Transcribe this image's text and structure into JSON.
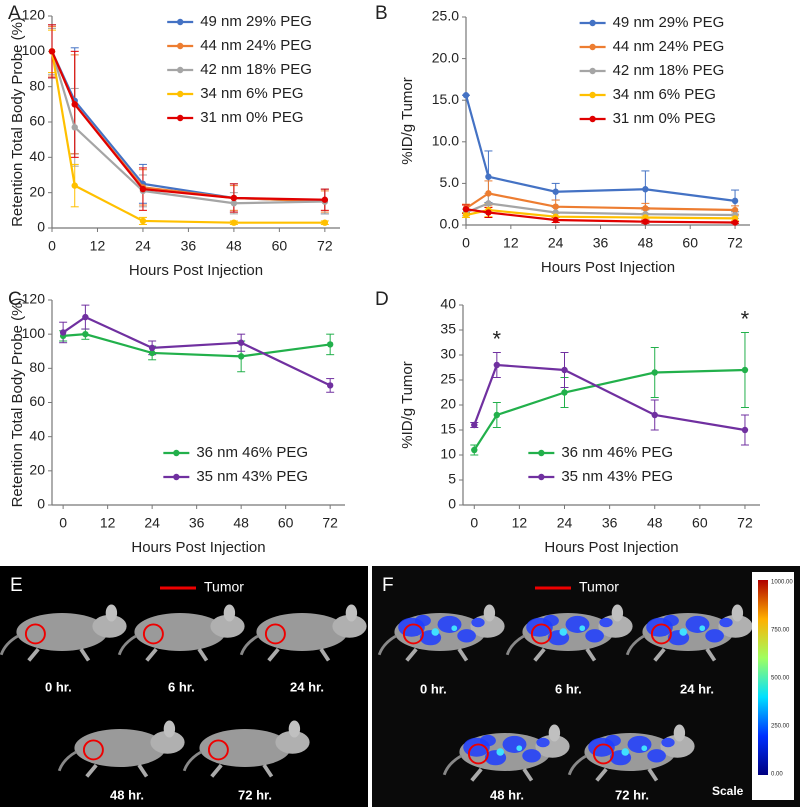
{
  "chart_data": [
    {
      "type": "line",
      "panel_label": "A",
      "x_label": "Hours Post Injection",
      "y_label": "Retention Total Body Probe (%)",
      "x": [
        0,
        6,
        24,
        48,
        72
      ],
      "xlim": [
        0,
        76
      ],
      "xticks": [
        0,
        12,
        24,
        36,
        48,
        60,
        72
      ],
      "ylim": [
        0,
        120
      ],
      "yticks": [
        0,
        20,
        40,
        60,
        80,
        100,
        120
      ],
      "grid": false,
      "legend": "upper right",
      "series": [
        {
          "name": "49 nm 29% PEG",
          "color": "#4472c4",
          "values": [
            100,
            72,
            25,
            17,
            15
          ],
          "errors": [
            15,
            30,
            11,
            8,
            7
          ]
        },
        {
          "name": "44 nm 24% PEG",
          "color": "#ed7d31",
          "values": [
            100,
            70,
            23,
            17,
            15
          ],
          "errors": [
            14,
            28,
            10,
            7,
            6
          ]
        },
        {
          "name": "42 nm 18% PEG",
          "color": "#a5a5a5",
          "values": [
            100,
            57,
            21,
            14,
            15
          ],
          "errors": [
            13,
            22,
            9,
            6,
            7
          ]
        },
        {
          "name": "34 nm 6% PEG",
          "color": "#ffc000",
          "values": [
            100,
            24,
            4,
            3,
            3
          ],
          "errors": [
            12,
            12,
            2,
            1,
            1
          ]
        },
        {
          "name": "31 nm 0% PEG",
          "color": "#e00000",
          "values": [
            100,
            70,
            22,
            17,
            16
          ],
          "errors": [
            15,
            30,
            12,
            8,
            6
          ]
        }
      ]
    },
    {
      "type": "line",
      "panel_label": "B",
      "x_label": "Hours Post Injection",
      "y_label": "%ID/g Tumor",
      "x": [
        0,
        6,
        24,
        48,
        72
      ],
      "xlim": [
        0,
        76
      ],
      "xticks": [
        0,
        12,
        24,
        36,
        48,
        60,
        72
      ],
      "ylim": [
        0,
        25
      ],
      "yticks": [
        {
          "value": 0,
          "label": "0.0"
        },
        {
          "value": 5,
          "label": "5.0"
        },
        {
          "value": 10,
          "label": "10.0"
        },
        {
          "value": 15,
          "label": "15.0"
        },
        {
          "value": 20,
          "label": "20.0"
        },
        {
          "value": 25,
          "label": "25.0"
        }
      ],
      "grid": false,
      "legend": "upper right",
      "series": [
        {
          "name": "49 nm 29% PEG",
          "color": "#4472c4",
          "values": [
            15.6,
            5.8,
            4.0,
            4.3,
            2.9
          ],
          "errors": [
            0,
            3.1,
            1.0,
            2.2,
            1.3
          ]
        },
        {
          "name": "44 nm 24% PEG",
          "color": "#ed7d31",
          "values": [
            2.0,
            3.8,
            2.2,
            2.0,
            1.8
          ],
          "errors": [
            0.5,
            1.5,
            0.8,
            0.6,
            0.5
          ]
        },
        {
          "name": "42 nm 18% PEG",
          "color": "#a5a5a5",
          "values": [
            1.5,
            2.6,
            1.5,
            1.3,
            1.2
          ],
          "errors": [
            0.4,
            1.2,
            0.6,
            0.5,
            0.4
          ]
        },
        {
          "name": "34 nm 6% PEG",
          "color": "#ffc000",
          "values": [
            1.2,
            1.8,
            1.0,
            0.9,
            0.8
          ],
          "errors": [
            0.3,
            0.8,
            0.4,
            0.3,
            0.3
          ]
        },
        {
          "name": "31 nm 0% PEG",
          "color": "#e00000",
          "values": [
            1.9,
            1.5,
            0.6,
            0.4,
            0.3
          ],
          "errors": [
            0.5,
            0.6,
            0.3,
            0.2,
            0.1
          ]
        }
      ]
    },
    {
      "type": "line",
      "panel_label": "C",
      "x_label": "Hours Post Injection",
      "y_label": "Retention Total Body Probe (%)",
      "x": [
        0,
        6,
        24,
        48,
        72
      ],
      "xlim": [
        -3,
        76
      ],
      "xticks": [
        0,
        12,
        24,
        36,
        48,
        60,
        72
      ],
      "ylim": [
        0,
        120
      ],
      "yticks": [
        0,
        20,
        40,
        60,
        80,
        100,
        120
      ],
      "grid": false,
      "legend": "lower center",
      "series": [
        {
          "name": "36 nm 46% PEG",
          "color": "#22b04b",
          "values": [
            99,
            100,
            89,
            87,
            94
          ],
          "errors": [
            3,
            3,
            4,
            9,
            6
          ]
        },
        {
          "name": "35 nm 43% PEG",
          "color": "#7030a0",
          "values": [
            101,
            110,
            92,
            95,
            70
          ],
          "errors": [
            6,
            7,
            4,
            5,
            4
          ]
        }
      ]
    },
    {
      "type": "line",
      "panel_label": "D",
      "x_label": "Hours Post Injection",
      "y_label": "%ID/g Tumor",
      "x": [
        0,
        6,
        24,
        48,
        72
      ],
      "xlim": [
        -3,
        76
      ],
      "xticks": [
        0,
        12,
        24,
        36,
        48,
        60,
        72
      ],
      "ylim": [
        0,
        40
      ],
      "yticks": [
        0,
        5,
        10,
        15,
        20,
        25,
        30,
        35,
        40
      ],
      "grid": false,
      "legend": "lower right",
      "annotations": [
        "*",
        "*"
      ],
      "series": [
        {
          "name": "36 nm 46% PEG",
          "color": "#22b04b",
          "values": [
            11,
            18,
            22.5,
            26.5,
            27
          ],
          "errors": [
            1,
            2.5,
            3,
            5,
            7.5
          ]
        },
        {
          "name": "35 nm 43% PEG",
          "color": "#7030a0",
          "values": [
            16,
            28,
            27,
            18,
            15
          ],
          "errors": [
            0.5,
            2.5,
            3.5,
            3,
            3
          ]
        }
      ]
    }
  ],
  "images": [
    {
      "panel_label": "E",
      "legend": "Tumor",
      "times": [
        "0 hr.",
        "6 hr.",
        "24 hr.",
        "48 hr.",
        "72 hr."
      ]
    },
    {
      "panel_label": "F",
      "legend": "Tumor",
      "times": [
        "0 hr.",
        "6 hr.",
        "24 hr.",
        "48 hr.",
        "72 hr."
      ],
      "colorbar_ticks": [
        "1000.00",
        "750.00",
        "500.00",
        "250.00",
        "0.00"
      ],
      "scale_label": "Scale"
    }
  ]
}
